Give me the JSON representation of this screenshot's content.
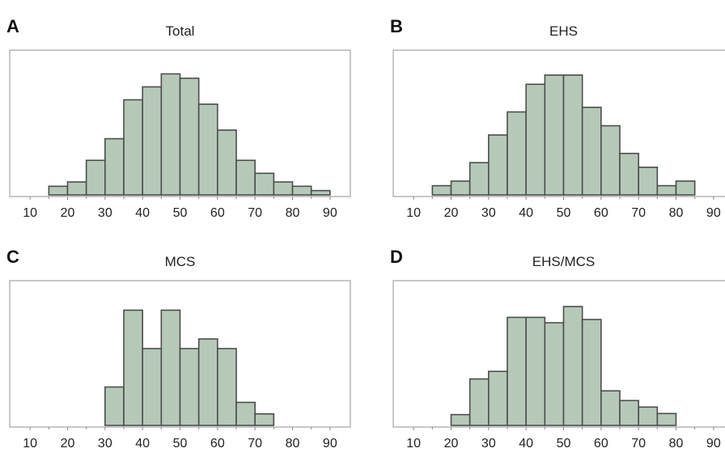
{
  "chart_data": [
    {
      "type": "bar",
      "panel_label": "A",
      "title": "Total",
      "bin_width": 5,
      "bins": [
        15,
        20,
        25,
        30,
        35,
        40,
        45,
        50,
        55,
        60,
        65,
        70,
        75,
        80,
        85
      ],
      "values": [
        2,
        3,
        8,
        13,
        22,
        25,
        28,
        27,
        21,
        15,
        8,
        5,
        3,
        2,
        1
      ],
      "xticks": [
        10,
        20,
        30,
        40,
        50,
        60,
        70,
        80,
        90
      ],
      "xlim": [
        5,
        95
      ],
      "ylim": [
        0,
        32
      ],
      "xlabel": "",
      "ylabel": ""
    },
    {
      "type": "bar",
      "panel_label": "B",
      "title": "EHS",
      "bin_width": 5,
      "bins": [
        15,
        20,
        25,
        30,
        35,
        40,
        45,
        50,
        55,
        60,
        65,
        70,
        75,
        80
      ],
      "values": [
        2,
        3,
        7,
        13,
        18,
        24,
        26,
        26,
        19,
        15,
        9,
        6,
        2,
        3
      ],
      "xticks": [
        10,
        20,
        30,
        40,
        50,
        60,
        70,
        80,
        90
      ],
      "xlim": [
        5,
        95
      ],
      "ylim": [
        0,
        30
      ],
      "xlabel": "",
      "ylabel": ""
    },
    {
      "type": "bar",
      "panel_label": "C",
      "title": "MCS",
      "bin_width": 5,
      "bins": [
        30,
        35,
        40,
        45,
        50,
        55,
        60,
        65,
        70
      ],
      "values": [
        2,
        6,
        4,
        6,
        4,
        4.5,
        4,
        1.2,
        0.6
      ],
      "xticks": [
        10,
        20,
        30,
        40,
        50,
        60,
        70,
        80,
        90
      ],
      "xlim": [
        5,
        95
      ],
      "ylim": [
        0,
        7.2
      ],
      "xlabel": "",
      "ylabel": ""
    },
    {
      "type": "bar",
      "panel_label": "D",
      "title": "EHS/MCS",
      "bin_width": 5,
      "bins": [
        20,
        25,
        30,
        35,
        40,
        45,
        50,
        55,
        60,
        65,
        70,
        75
      ],
      "values": [
        1,
        4.3,
        5,
        10,
        10,
        9.5,
        11,
        9.8,
        3.2,
        2.3,
        1.7,
        1.1
      ],
      "xticks": [
        10,
        20,
        30,
        40,
        50,
        60,
        70,
        80,
        90
      ],
      "xlim": [
        5,
        95
      ],
      "ylim": [
        0,
        12.8
      ],
      "xlabel": "",
      "ylabel": ""
    }
  ]
}
